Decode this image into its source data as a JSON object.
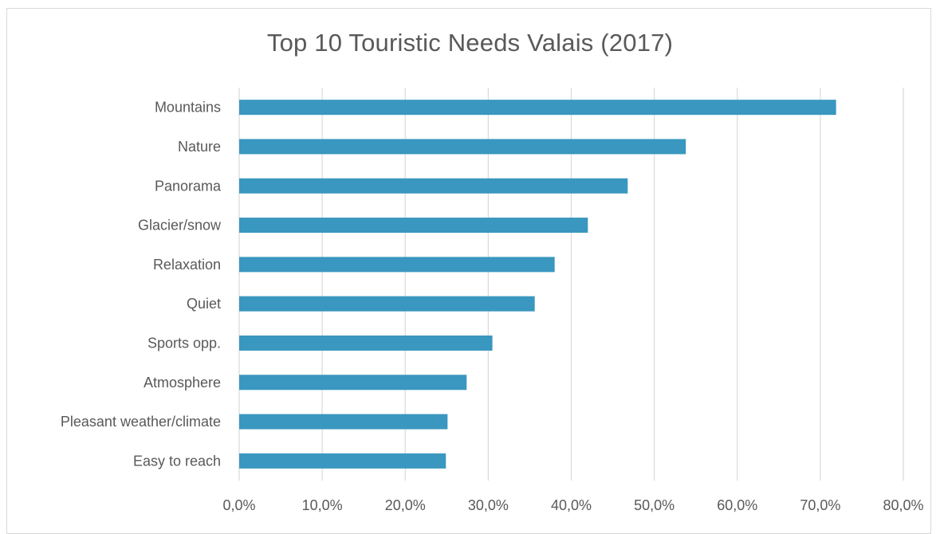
{
  "chart_data": {
    "type": "bar",
    "orientation": "horizontal",
    "title": "Top 10 Touristic Needs Valais (2017)",
    "xlabel": "",
    "ylabel": "",
    "categories": [
      "Mountains",
      "Nature",
      "Panorama",
      "Glacier/snow",
      "Relaxation",
      "Quiet",
      "Sports opp.",
      "Atmosphere",
      "Pleasant weather/climate",
      "Easy to reach"
    ],
    "values": [
      71.9,
      53.8,
      46.8,
      42.0,
      38.0,
      35.6,
      30.5,
      27.4,
      25.1,
      24.9
    ],
    "xlim": [
      0,
      80
    ],
    "x_ticks": [
      "0,0%",
      "10,0%",
      "20,0%",
      "30,0%",
      "40,0%",
      "50,0%",
      "60,0%",
      "70,0%",
      "80,0%"
    ],
    "grid": "vertical",
    "legend": "none",
    "bar_color": "#3a97bf",
    "grid_color": "#d9d9d9"
  }
}
